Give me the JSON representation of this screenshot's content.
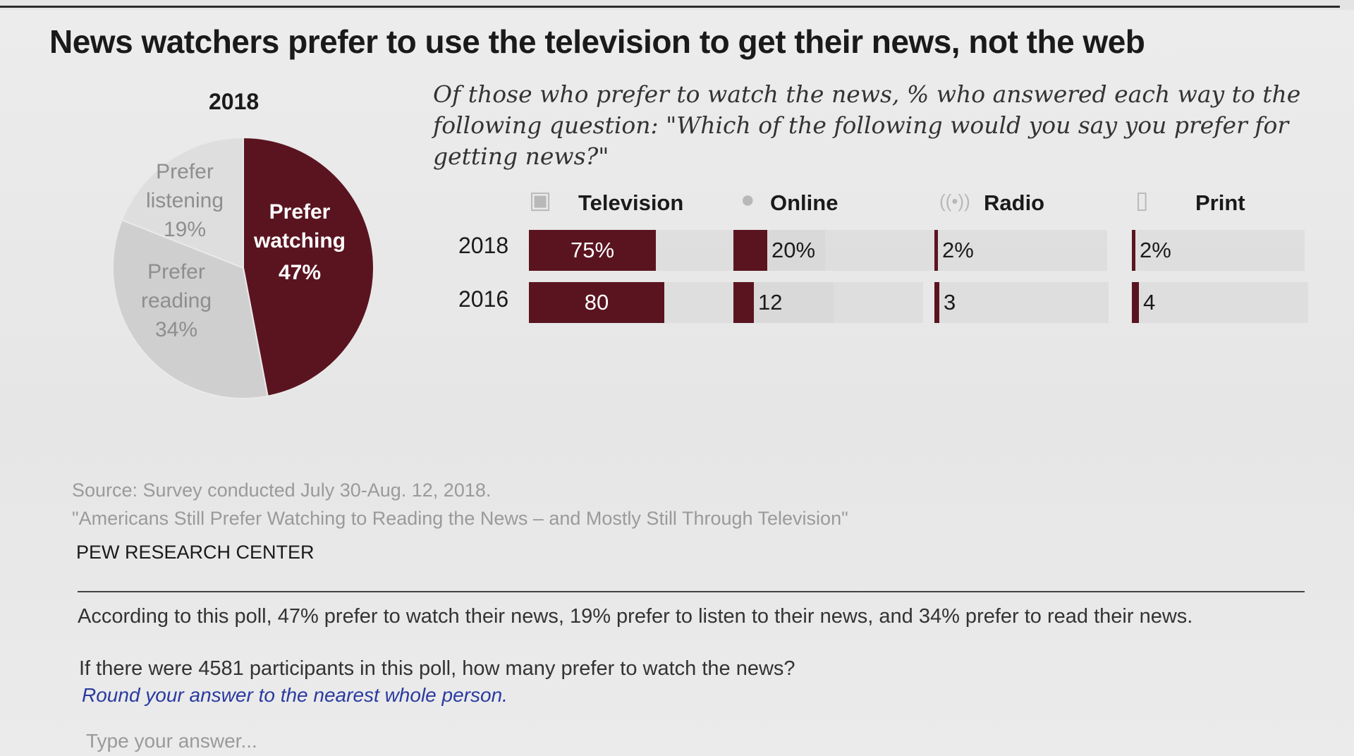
{
  "page": {
    "title": "News watchers prefer to use the television to get their news, not the web"
  },
  "chart_data": [
    {
      "type": "pie",
      "title": "2018",
      "slices": [
        {
          "line1": "Prefer",
          "line2": "watching",
          "line3": "47%",
          "value": 47,
          "color": "#5a1420"
        },
        {
          "line1": "Prefer",
          "line2": "reading",
          "line3": "34%",
          "value": 34,
          "color": "#cfcfcf"
        },
        {
          "line1": "Prefer",
          "line2": "listening",
          "line3": "19%",
          "value": 19,
          "color": "#dedede"
        }
      ]
    },
    {
      "type": "bar",
      "title": "Of those who prefer to watch the news, % who answered each way to the following question: \"Which of the following would you say you prefer for getting news?\"",
      "categories": [
        "2018",
        "2016"
      ],
      "series": [
        {
          "name": "Television",
          "icon": "television-icon",
          "values": [
            75,
            80
          ],
          "labels": [
            "75%",
            "80"
          ]
        },
        {
          "name": "Online",
          "icon": "mouse-icon",
          "values": [
            20,
            12
          ],
          "labels": [
            "20%",
            "12"
          ]
        },
        {
          "name": "Radio",
          "icon": "radio-icon",
          "values": [
            2,
            3
          ],
          "labels": [
            "2%",
            "3"
          ]
        },
        {
          "name": "Print",
          "icon": "newspaper-icon",
          "values": [
            2,
            4
          ],
          "labels": [
            "2%",
            "4"
          ]
        }
      ],
      "bar_color": "#5a1420"
    }
  ],
  "source": {
    "line1": "Source: Survey conducted July 30-Aug. 12, 2018.",
    "line2": "\"Americans Still Prefer Watching to Reading the News – and Mostly Still Through Television\""
  },
  "org": "PEW RESEARCH CENTER",
  "problem": {
    "statement": "According to this poll, 47% prefer to watch their news, 19% prefer to listen to their news, and 34% prefer to read their news.",
    "question": "If there were 4581 participants in this poll, how many prefer to watch the news?",
    "hint": "Round your answer to the nearest whole person.",
    "answer_placeholder": "Type your answer..."
  }
}
